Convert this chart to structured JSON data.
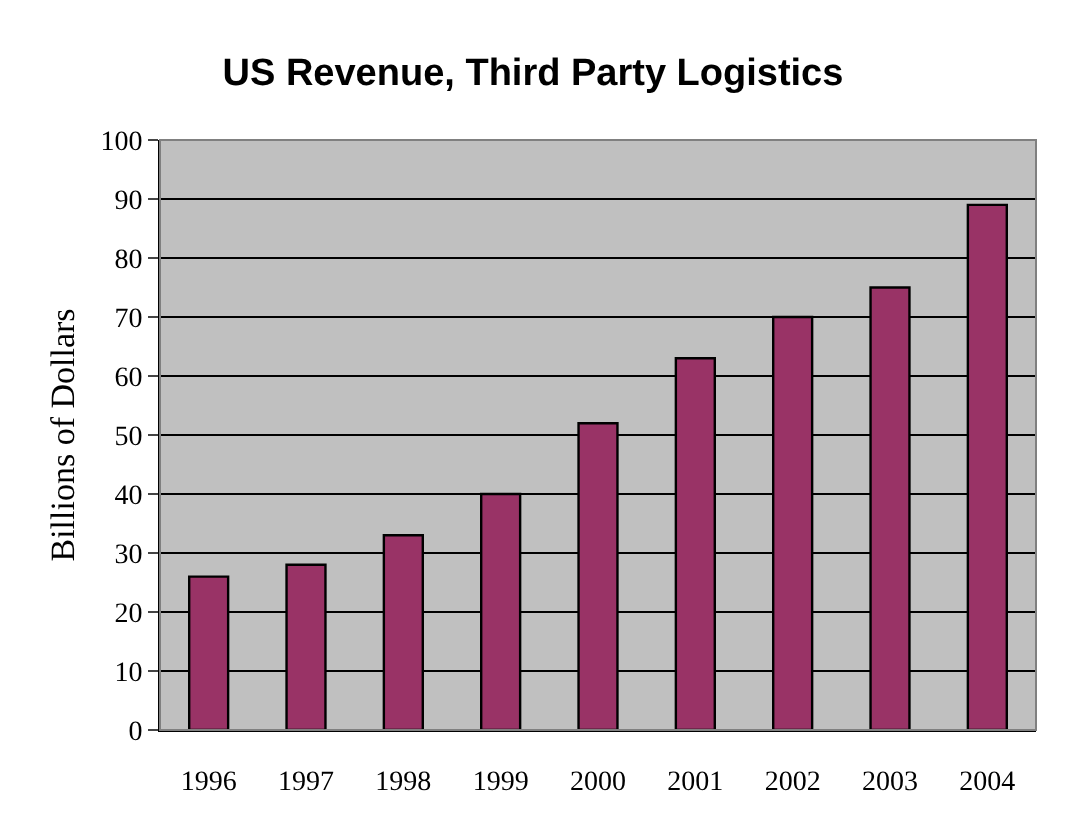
{
  "chart_data": {
    "type": "bar",
    "title": "US Revenue, Third Party Logistics",
    "ylabel": "Billions of Dollars",
    "categories": [
      "1996",
      "1997",
      "1998",
      "1999",
      "2000",
      "2001",
      "2002",
      "2003",
      "2004"
    ],
    "values": [
      26,
      28,
      33,
      40,
      52,
      63,
      70,
      75,
      89
    ],
    "color": "#993366",
    "ylim": [
      0,
      100
    ],
    "yticks": [
      0,
      10,
      20,
      30,
      40,
      50,
      60,
      70,
      80,
      90,
      100
    ],
    "grid": "y"
  }
}
